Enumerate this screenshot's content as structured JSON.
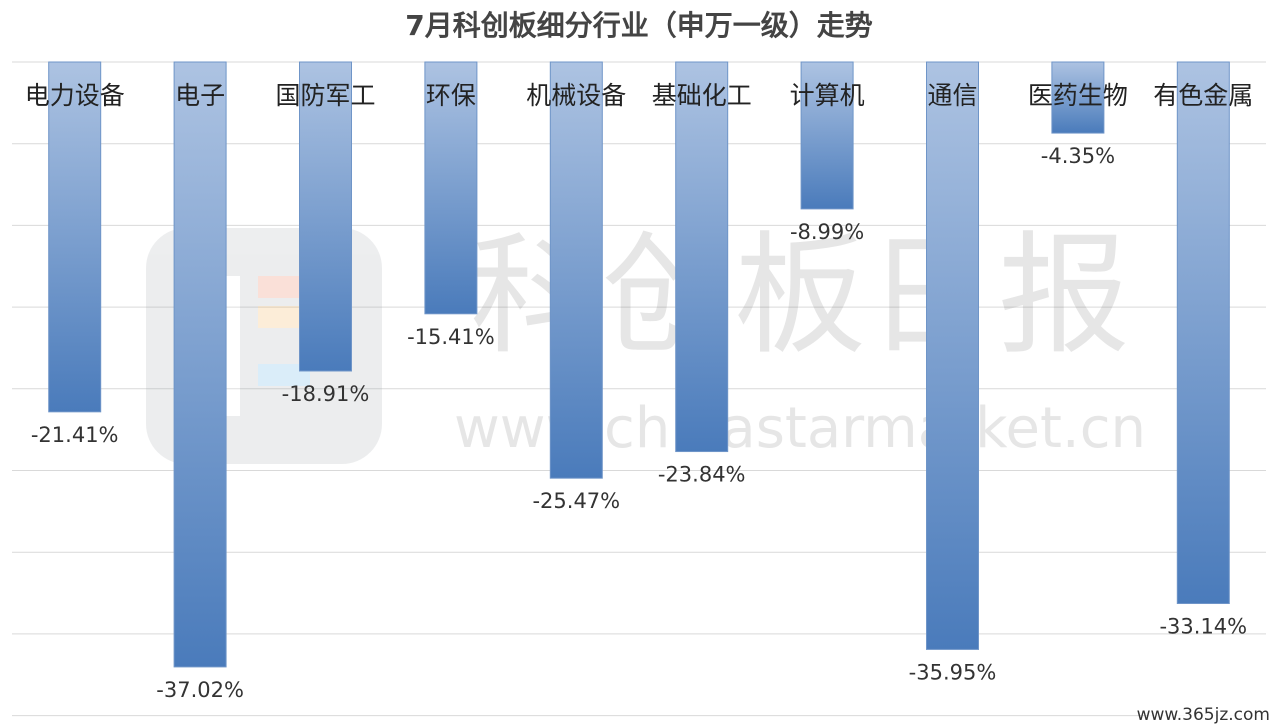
{
  "chart_data": {
    "type": "bar",
    "title": "7月科创板细分行业（申万一级）走势",
    "categories": [
      "电力设备",
      "电子",
      "国防军工",
      "环保",
      "机械设备",
      "基础化工",
      "计算机",
      "通信",
      "医药生物",
      "有色金属"
    ],
    "values": [
      -21.41,
      -37.02,
      -18.91,
      -15.41,
      -25.47,
      -23.84,
      -8.99,
      -35.95,
      -4.35,
      -33.14
    ],
    "value_labels": [
      "-21.41%",
      "-37.02%",
      "-18.91%",
      "-15.41%",
      "-25.47%",
      "-23.84%",
      "-8.99%",
      "-35.95%",
      "-4.35%",
      "-33.14%"
    ],
    "color": "#4a7bbb",
    "ylim": [
      -40,
      0
    ],
    "yticks": [
      0,
      -5,
      -10,
      -15,
      -20,
      -25,
      -30,
      -35,
      -40
    ],
    "grid": true,
    "watermark": "科创板日报",
    "watermark_url": "www.chinastarmarket.cn",
    "stamp": "www.365jz.com"
  }
}
